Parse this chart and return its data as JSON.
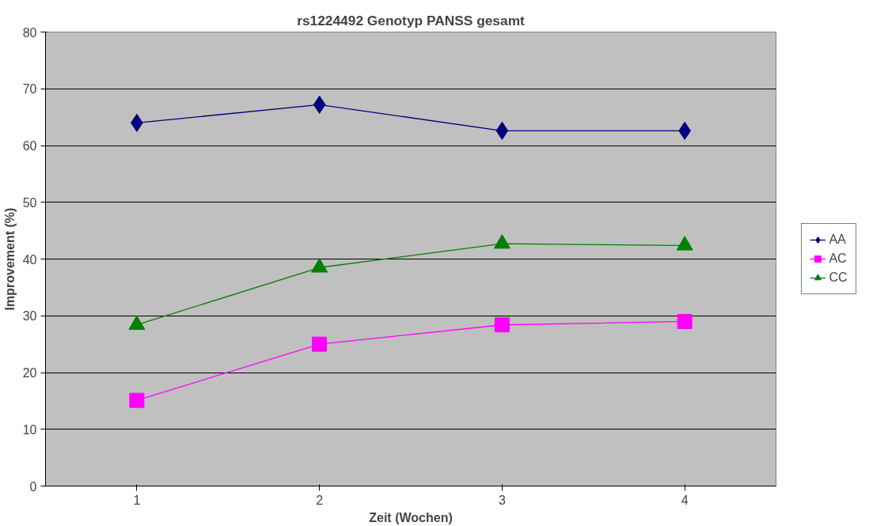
{
  "chart_data": {
    "type": "line",
    "title": "rs1224492 Genotyp PANSS gesamt",
    "xlabel": "Zeit (Wochen)",
    "ylabel": "Improvement (%)",
    "categories": [
      "1",
      "2",
      "3",
      "4"
    ],
    "series": [
      {
        "name": "AA",
        "color": "#000080",
        "marker": "diamond",
        "values": [
          64.0,
          67.2,
          62.6,
          62.6
        ]
      },
      {
        "name": "AC",
        "color": "#ff00ff",
        "marker": "square",
        "values": [
          15.1,
          25.0,
          28.4,
          29.0
        ]
      },
      {
        "name": "CC",
        "color": "#008000",
        "marker": "triangle",
        "values": [
          28.4,
          38.5,
          42.7,
          42.4
        ]
      }
    ],
    "ylim": [
      0,
      80
    ],
    "yticks": [
      0,
      10,
      20,
      30,
      40,
      50,
      60,
      70,
      80
    ],
    "grid": "y",
    "legend": "right",
    "line_style": "solid"
  }
}
